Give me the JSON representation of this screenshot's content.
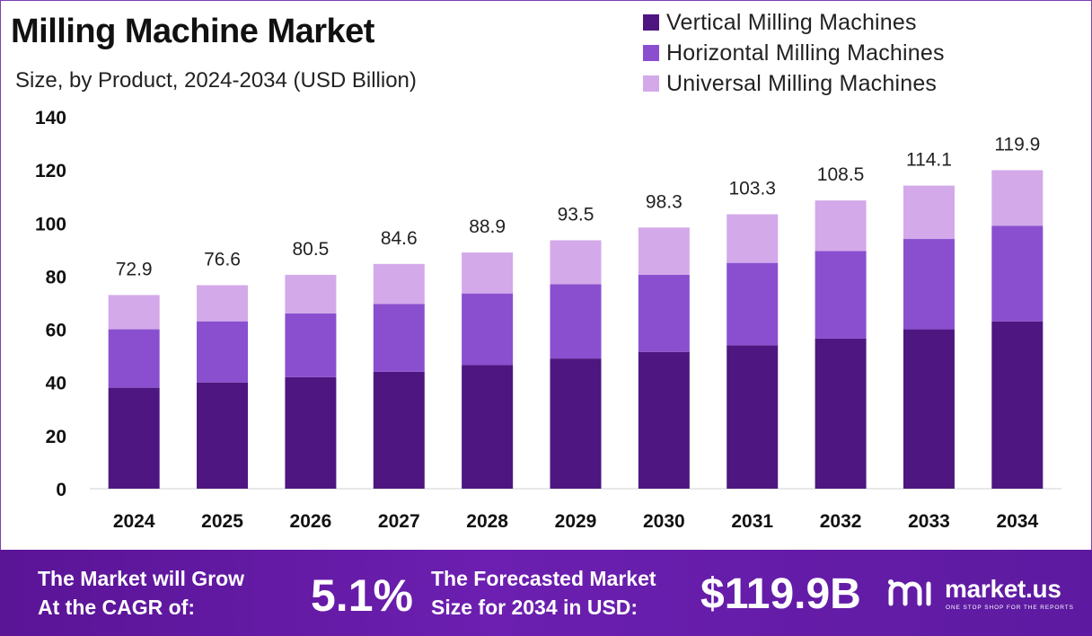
{
  "title": "Milling Machine Market",
  "subtitle": "Size, by Product, 2024-2034 (USD Billion)",
  "chart_data": {
    "type": "bar",
    "stacked": true,
    "title": "Milling Machine Market",
    "subtitle": "Size, by Product, 2024-2034 (USD Billion)",
    "categories": [
      "2024",
      "2025",
      "2026",
      "2027",
      "2028",
      "2029",
      "2030",
      "2031",
      "2032",
      "2033",
      "2034"
    ],
    "series": [
      {
        "name": "Vertical Milling Machines",
        "color": "#4e1680",
        "values": [
          38.0,
          40.0,
          42.0,
          44.0,
          46.5,
          49.0,
          51.5,
          54.0,
          56.5,
          60.0,
          63.0
        ]
      },
      {
        "name": "Horizontal Milling Machines",
        "color": "#8a4fcf",
        "values": [
          22.0,
          23.0,
          24.0,
          25.5,
          27.0,
          28.0,
          29.0,
          31.0,
          33.0,
          34.0,
          36.0
        ]
      },
      {
        "name": "Universal Milling Machines",
        "color": "#d3a9ea",
        "values": [
          12.9,
          13.6,
          14.5,
          15.1,
          15.4,
          16.5,
          17.8,
          18.3,
          19.0,
          20.1,
          20.9
        ]
      }
    ],
    "totals": [
      "72.9",
      "76.6",
      "80.5",
      "84.6",
      "88.9",
      "93.5",
      "98.3",
      "103.3",
      "108.5",
      "114.1",
      "119.9"
    ],
    "ylim": [
      0,
      140
    ],
    "yticks": [
      "0",
      "20",
      "40",
      "60",
      "80",
      "100",
      "120",
      "140"
    ],
    "grid": false,
    "legend_position": "top-right"
  },
  "footer": {
    "cagr_label_line1": "The Market will Grow",
    "cagr_label_line2": "At the CAGR of:",
    "cagr_value": "5.1%",
    "forecast_label_line1": "The Forecasted Market",
    "forecast_label_line2": "Size for 2034 in USD:",
    "forecast_value": "$119.9B",
    "logo_text": "market.us",
    "logo_tagline": "ONE STOP SHOP FOR THE REPORTS"
  }
}
